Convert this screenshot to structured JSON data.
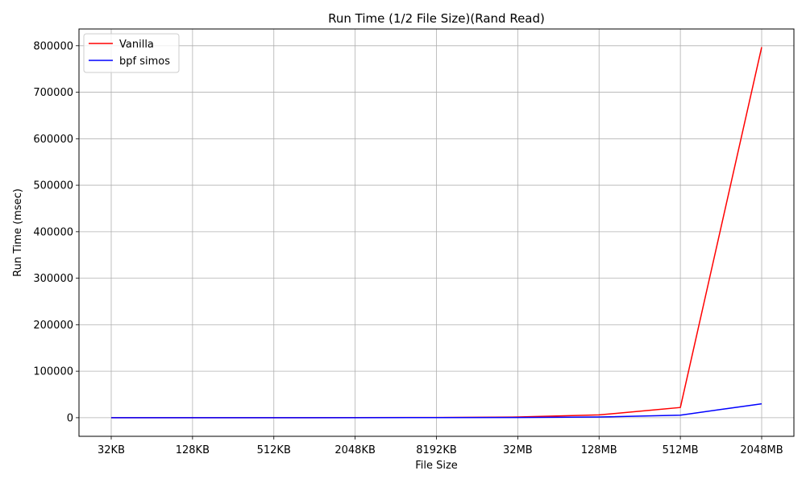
{
  "chart_data": {
    "type": "line",
    "title": "Run Time (1/2 File Size)(Rand Read)",
    "xlabel": "File Size",
    "ylabel": "Run Time (msec)",
    "categories": [
      "32KB",
      "128KB",
      "512KB",
      "2048KB",
      "8192KB",
      "32MB",
      "128MB",
      "512MB",
      "2048MB"
    ],
    "ylim": [
      -40000,
      836000
    ],
    "yticks": [
      0,
      100000,
      200000,
      300000,
      400000,
      500000,
      600000,
      700000,
      800000
    ],
    "grid": true,
    "legend_position": "top-left",
    "series": [
      {
        "name": "Vanilla",
        "color": "#ff0000",
        "values": [
          20,
          40,
          80,
          200,
          500,
          1500,
          6000,
          22000,
          797000
        ]
      },
      {
        "name": "bpf simos",
        "color": "#0000ff",
        "values": [
          10,
          20,
          40,
          90,
          200,
          500,
          1500,
          5500,
          30000
        ]
      }
    ]
  }
}
